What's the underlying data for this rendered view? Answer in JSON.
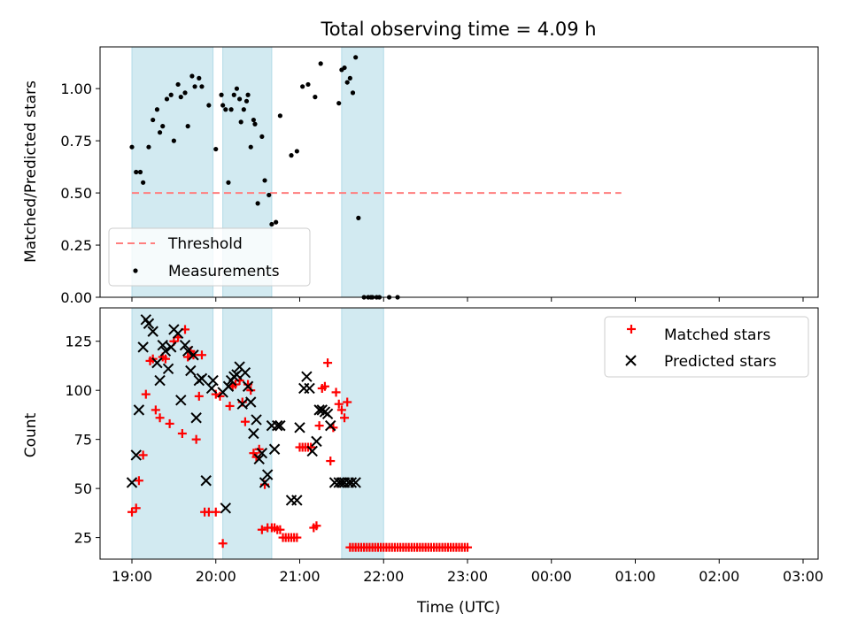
{
  "title": "Total observing time = 4.09 h",
  "x_axis": {
    "label": "Time (UTC)",
    "ticks": [
      {
        "t": 0,
        "label": "19:00"
      },
      {
        "t": 60,
        "label": "20:00"
      },
      {
        "t": 120,
        "label": "21:00"
      },
      {
        "t": 180,
        "label": "22:00"
      },
      {
        "t": 240,
        "label": "23:00"
      },
      {
        "t": 300,
        "label": "00:00"
      },
      {
        "t": 360,
        "label": "01:00"
      },
      {
        "t": 420,
        "label": "02:00"
      },
      {
        "t": 480,
        "label": "03:00"
      }
    ]
  },
  "colors": {
    "band": "#add8e6",
    "threshold": "#ff7f7f",
    "matched": "#ff0000",
    "predicted": "#000000",
    "measure": "#000000"
  },
  "chart_data": [
    {
      "type": "scatter",
      "ylabel": "Matched/Predicted stars",
      "ylim": [
        0,
        1.2
      ],
      "yticks": [
        "0.00",
        "0.25",
        "0.50",
        "0.75",
        "1.00"
      ],
      "legend_placement": "lower-left",
      "observing_windows": [
        [
          0,
          58
        ],
        [
          65,
          100
        ],
        [
          150,
          180
        ]
      ],
      "threshold": {
        "name": "Threshold",
        "y": 0.5,
        "x_range": [
          0,
          350
        ]
      },
      "series": [
        {
          "name": "Measurements",
          "x": [
            0,
            3,
            6,
            8,
            12,
            15,
            18,
            20,
            22,
            25,
            28,
            30,
            33,
            35,
            38,
            40,
            43,
            45,
            48,
            50,
            55,
            60,
            64,
            65,
            67,
            69,
            71,
            73,
            75,
            77,
            78,
            80,
            82,
            83,
            85,
            87,
            88,
            90,
            93,
            95,
            98,
            100,
            103,
            106,
            114,
            118,
            122,
            126,
            131,
            135,
            148,
            150,
            152,
            154,
            156,
            158,
            160,
            162,
            166,
            169,
            171,
            172,
            175,
            177,
            184,
            190
          ],
          "y": [
            0.72,
            0.6,
            0.6,
            0.55,
            0.72,
            0.85,
            0.9,
            0.79,
            0.82,
            0.95,
            0.97,
            0.75,
            1.02,
            0.96,
            0.98,
            0.82,
            1.06,
            1.01,
            1.05,
            1.01,
            0.92,
            0.71,
            0.97,
            0.92,
            0.9,
            0.55,
            0.9,
            0.97,
            1.0,
            0.95,
            0.84,
            0.9,
            0.94,
            0.97,
            0.72,
            0.85,
            0.83,
            0.45,
            0.77,
            0.56,
            0.49,
            0.35,
            0.36,
            0.87,
            0.68,
            0.7,
            1.01,
            1.02,
            0.96,
            1.12,
            0.93,
            1.09,
            1.1,
            1.03,
            1.05,
            0.98,
            1.15,
            0.38,
            0.0,
            0.0,
            0.0,
            0.0,
            0.0,
            0.0,
            0.0,
            0.0
          ]
        }
      ]
    },
    {
      "type": "scatter",
      "ylabel": "Count",
      "ylim": [
        14,
        142
      ],
      "yticks": [
        "25",
        "50",
        "75",
        "100",
        "125"
      ],
      "legend_placement": "upper-right",
      "observing_windows": [
        [
          0,
          58
        ],
        [
          65,
          100
        ],
        [
          150,
          180
        ]
      ],
      "series": [
        {
          "name": "Matched stars",
          "marker": "+",
          "x": [
            0,
            3,
            5,
            8,
            10,
            13,
            15,
            17,
            20,
            22,
            24,
            27,
            30,
            33,
            36,
            38,
            40,
            42,
            44,
            46,
            48,
            50,
            52,
            55,
            60,
            60,
            63,
            65,
            70,
            72,
            74,
            77,
            79,
            81,
            83,
            85,
            87,
            89,
            91,
            93,
            95,
            97,
            100,
            102,
            104,
            106,
            108,
            110,
            112,
            114,
            116,
            118,
            120,
            122,
            124,
            126,
            128,
            130,
            132,
            134,
            136,
            138,
            140,
            142,
            144,
            146,
            148,
            150,
            152,
            154,
            156,
            158,
            160,
            162,
            164,
            166,
            168,
            170,
            172,
            174,
            176,
            178,
            180,
            182,
            184,
            186,
            188,
            190,
            192,
            194,
            196,
            198,
            200,
            202,
            204,
            206,
            208,
            210,
            212,
            214,
            216,
            218,
            220,
            222,
            224,
            226,
            228,
            230,
            232,
            234,
            236,
            238,
            240
          ],
          "y": [
            38,
            40,
            54,
            67,
            98,
            115,
            116,
            90,
            86,
            117,
            116,
            83,
            125,
            127,
            78,
            131,
            117,
            120,
            118,
            75,
            97,
            118,
            38,
            38,
            38,
            98,
            97,
            22,
            92,
            102,
            103,
            105,
            94,
            84,
            103,
            100,
            68,
            66,
            70,
            29,
            52,
            30,
            30,
            30,
            29,
            29,
            25,
            25,
            25,
            25,
            25,
            25,
            71,
            71,
            71,
            71,
            71,
            30,
            31,
            82,
            101,
            102,
            114,
            64,
            81,
            99,
            93,
            90,
            86,
            94,
            20,
            20,
            20,
            20,
            20,
            20,
            20,
            20,
            20,
            20,
            20,
            20,
            20,
            20,
            20,
            20,
            20,
            20,
            20,
            20,
            20,
            20,
            20,
            20,
            20,
            20,
            20,
            20,
            20,
            20,
            20,
            20,
            20,
            20,
            20,
            20,
            20,
            20,
            20,
            20,
            20,
            20,
            20
          ]
        },
        {
          "name": "Predicted stars",
          "marker": "x",
          "x": [
            0,
            3,
            5,
            8,
            10,
            12,
            15,
            18,
            20,
            22,
            24,
            26,
            28,
            30,
            33,
            35,
            38,
            40,
            42,
            44,
            46,
            48,
            50,
            53,
            57,
            58,
            65,
            67,
            69,
            71,
            73,
            75,
            77,
            79,
            81,
            83,
            85,
            87,
            89,
            91,
            93,
            95,
            97,
            100,
            102,
            104,
            106,
            114,
            118,
            120,
            123,
            125,
            127,
            129,
            132,
            134,
            136,
            138,
            140,
            142,
            145,
            148,
            150,
            152,
            155,
            157,
            160
          ],
          "y": [
            53,
            67,
            90,
            122,
            136,
            134,
            130,
            114,
            105,
            123,
            120,
            111,
            122,
            131,
            129,
            95,
            123,
            120,
            110,
            118,
            86,
            105,
            106,
            54,
            101,
            105,
            99,
            40,
            102,
            105,
            107,
            108,
            112,
            93,
            109,
            102,
            94,
            78,
            85,
            65,
            68,
            53,
            57,
            82,
            70,
            82,
            82,
            44,
            44,
            81,
            101,
            107,
            101,
            69,
            74,
            90,
            90,
            89,
            88,
            82,
            53,
            53,
            53,
            53,
            53,
            53,
            53
          ]
        }
      ]
    }
  ]
}
